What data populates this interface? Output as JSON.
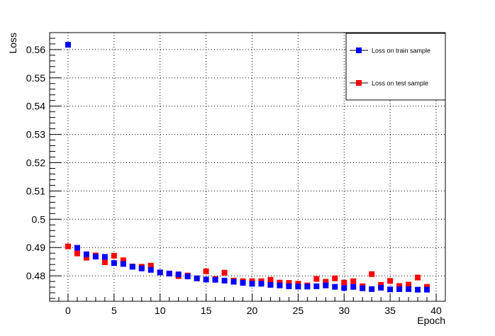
{
  "chart_data": {
    "type": "scatter",
    "title": "",
    "xlabel": "Epoch",
    "ylabel": "Loss",
    "xlim": [
      -2,
      41
    ],
    "ylim": [
      0.471,
      0.566
    ],
    "xticks": [
      0,
      5,
      10,
      15,
      20,
      25,
      30,
      35,
      40
    ],
    "xtick_labels": [
      "0",
      "5",
      "10",
      "15",
      "20",
      "25",
      "30",
      "35",
      "40"
    ],
    "yticks": [
      0.48,
      0.49,
      0.5,
      0.51,
      0.52,
      0.53,
      0.54,
      0.55,
      0.56
    ],
    "ytick_labels": [
      "0.48",
      "0.49",
      "0.5",
      "0.51",
      "0.52",
      "0.53",
      "0.54",
      "0.55",
      "0.56"
    ],
    "grid": true,
    "legend_position": "top-right",
    "series": [
      {
        "name": "Loss on train sample",
        "color": "#0000ff",
        "x": [
          0,
          1,
          2,
          3,
          4,
          5,
          6,
          7,
          8,
          9,
          10,
          11,
          12,
          13,
          14,
          15,
          16,
          17,
          18,
          19,
          20,
          21,
          22,
          23,
          24,
          25,
          26,
          27,
          28,
          29,
          30,
          31,
          32,
          33,
          34,
          35,
          36,
          37,
          38,
          39
        ],
        "values": [
          0.5617,
          0.4899,
          0.4876,
          0.4868,
          0.4867,
          0.4845,
          0.4842,
          0.4832,
          0.4826,
          0.4821,
          0.4812,
          0.4808,
          0.4805,
          0.4798,
          0.4791,
          0.4787,
          0.4786,
          0.4783,
          0.4779,
          0.4775,
          0.4772,
          0.4772,
          0.4768,
          0.4766,
          0.4763,
          0.4762,
          0.4762,
          0.4763,
          0.4766,
          0.4761,
          0.4757,
          0.4761,
          0.4756,
          0.4753,
          0.4758,
          0.4752,
          0.4753,
          0.4753,
          0.4751,
          0.4751
        ]
      },
      {
        "name": "Loss on test sample",
        "color": "#ff0000",
        "x": [
          0,
          1,
          2,
          3,
          4,
          5,
          6,
          7,
          8,
          9,
          10,
          11,
          12,
          13,
          14,
          15,
          16,
          17,
          18,
          19,
          20,
          21,
          22,
          23,
          24,
          25,
          26,
          27,
          28,
          29,
          30,
          31,
          32,
          33,
          34,
          35,
          36,
          37,
          38,
          39
        ],
        "values": [
          0.4904,
          0.4879,
          0.4864,
          0.4872,
          0.4848,
          0.4871,
          0.4855,
          0.4833,
          0.4832,
          0.4836,
          0.4812,
          0.4808,
          0.4799,
          0.4801,
          0.4791,
          0.4816,
          0.4789,
          0.4811,
          0.4783,
          0.4781,
          0.4781,
          0.4781,
          0.4786,
          0.4776,
          0.4775,
          0.4772,
          0.4766,
          0.4789,
          0.4779,
          0.4791,
          0.4776,
          0.4781,
          0.4763,
          0.4806,
          0.4768,
          0.4782,
          0.4764,
          0.4769,
          0.4794,
          0.4761
        ]
      }
    ]
  }
}
